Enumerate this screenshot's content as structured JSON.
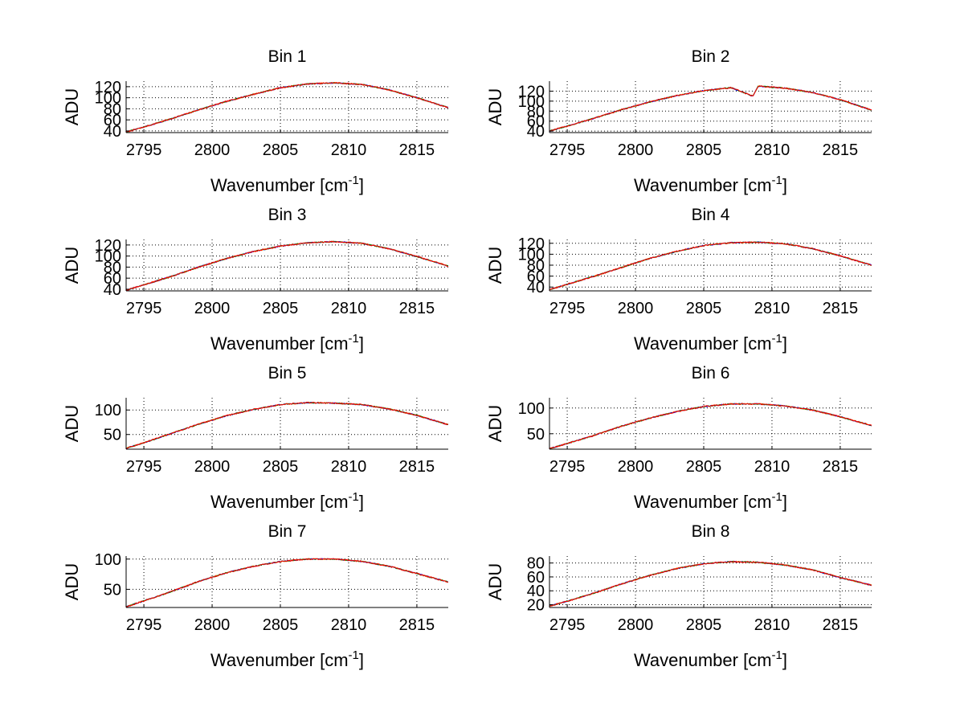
{
  "figure": {
    "background": "#ffffff",
    "trace_colors": [
      "#ff0000",
      "#008000",
      "#0000ff",
      "#ffa500"
    ]
  },
  "chart_data": [
    {
      "type": "line",
      "title": "Bin 1",
      "xlabel": "Wavenumber [cm",
      "xlabel_sup": "-1",
      "xlabel_end": "]",
      "ylabel": "ADU",
      "xlim": [
        2793.7,
        2817.3
      ],
      "ylim": [
        37,
        130
      ],
      "xticks": [
        2795,
        2800,
        2805,
        2810,
        2815
      ],
      "yticks": [
        40,
        60,
        80,
        100,
        120
      ],
      "grid": true,
      "x": [
        2793.7,
        2795,
        2797,
        2799,
        2801,
        2803,
        2805,
        2807,
        2809,
        2811,
        2813,
        2815,
        2817.3
      ],
      "values": [
        38,
        47,
        62,
        78,
        93,
        106,
        118,
        125,
        127,
        124,
        114,
        100,
        82
      ]
    },
    {
      "type": "line",
      "title": "Bin 2",
      "xlabel": "Wavenumber [cm",
      "xlabel_sup": "-1",
      "xlabel_end": "]",
      "ylabel": "ADU",
      "xlim": [
        2793.7,
        2817.3
      ],
      "ylim": [
        37,
        140
      ],
      "xticks": [
        2795,
        2800,
        2805,
        2810,
        2815
      ],
      "yticks": [
        40,
        60,
        80,
        100,
        120
      ],
      "grid": true,
      "x": [
        2793.7,
        2795,
        2797,
        2799,
        2801,
        2803,
        2805,
        2807,
        2808.6,
        2809,
        2811,
        2813,
        2815,
        2817.3
      ],
      "values": [
        40,
        50,
        66,
        83,
        98,
        111,
        121,
        127,
        110,
        130,
        126,
        117,
        103,
        82
      ]
    },
    {
      "type": "line",
      "title": "Bin 3",
      "xlabel": "Wavenumber [cm",
      "xlabel_sup": "-1",
      "xlabel_end": "]",
      "ylabel": "ADU",
      "xlim": [
        2793.7,
        2817.3
      ],
      "ylim": [
        37,
        130
      ],
      "xticks": [
        2795,
        2800,
        2805,
        2810,
        2815
      ],
      "yticks": [
        40,
        60,
        80,
        100,
        120
      ],
      "grid": true,
      "x": [
        2793.7,
        2795,
        2797,
        2799,
        2801,
        2803,
        2805,
        2807,
        2809,
        2811,
        2813,
        2815,
        2817.3
      ],
      "values": [
        38,
        48,
        63,
        80,
        95,
        108,
        118,
        124,
        126,
        123,
        113,
        99,
        82
      ]
    },
    {
      "type": "line",
      "title": "Bin 4",
      "xlabel": "Wavenumber [cm",
      "xlabel_sup": "-1",
      "xlabel_end": "]",
      "ylabel": "ADU",
      "xlim": [
        2793.7,
        2817.3
      ],
      "ylim": [
        33,
        127
      ],
      "xticks": [
        2795,
        2800,
        2805,
        2810,
        2815
      ],
      "yticks": [
        40,
        60,
        80,
        100,
        120
      ],
      "grid": true,
      "x": [
        2793.7,
        2795,
        2797,
        2799,
        2801,
        2803,
        2805,
        2807,
        2809,
        2811,
        2813,
        2815,
        2817.3
      ],
      "values": [
        35,
        45,
        60,
        76,
        92,
        105,
        116,
        121,
        122,
        119,
        110,
        97,
        80
      ]
    },
    {
      "type": "line",
      "title": "Bin 5",
      "xlabel": "Wavenumber [cm",
      "xlabel_sup": "-1",
      "xlabel_end": "]",
      "ylabel": "ADU",
      "xlim": [
        2793.7,
        2817.3
      ],
      "ylim": [
        20,
        125
      ],
      "xticks": [
        2795,
        2800,
        2805,
        2810,
        2815
      ],
      "yticks": [
        50,
        100
      ],
      "grid": true,
      "x": [
        2793.7,
        2795,
        2797,
        2799,
        2801,
        2803,
        2805,
        2807,
        2809,
        2811,
        2813,
        2815,
        2817.3
      ],
      "values": [
        22,
        33,
        52,
        71,
        88,
        101,
        111,
        115,
        114,
        111,
        102,
        89,
        70
      ]
    },
    {
      "type": "line",
      "title": "Bin 6",
      "xlabel": "Wavenumber [cm",
      "xlabel_sup": "-1",
      "xlabel_end": "]",
      "ylabel": "ADU",
      "xlim": [
        2793.7,
        2817.3
      ],
      "ylim": [
        20,
        120
      ],
      "xticks": [
        2795,
        2800,
        2805,
        2810,
        2815
      ],
      "yticks": [
        50,
        100
      ],
      "grid": true,
      "x": [
        2793.7,
        2795,
        2797,
        2799,
        2801,
        2803,
        2805,
        2807,
        2809,
        2811,
        2813,
        2815,
        2817.3
      ],
      "values": [
        21,
        31,
        47,
        65,
        80,
        93,
        103,
        108,
        108,
        104,
        96,
        83,
        66
      ]
    },
    {
      "type": "line",
      "title": "Bin 7",
      "xlabel": "Wavenumber [cm",
      "xlabel_sup": "-1",
      "xlabel_end": "]",
      "ylabel": "ADU",
      "xlim": [
        2793.7,
        2817.3
      ],
      "ylim": [
        20,
        105
      ],
      "xticks": [
        2795,
        2800,
        2805,
        2810,
        2815
      ],
      "yticks": [
        50,
        100
      ],
      "grid": true,
      "x": [
        2793.7,
        2795,
        2797,
        2799,
        2801,
        2803,
        2805,
        2807,
        2809,
        2811,
        2813,
        2815,
        2817.3
      ],
      "values": [
        21,
        31,
        46,
        63,
        77,
        88,
        96,
        100,
        100,
        96,
        88,
        76,
        62
      ]
    },
    {
      "type": "line",
      "title": "Bin 8",
      "xlabel": "Wavenumber [cm",
      "xlabel_sup": "-1",
      "xlabel_end": "]",
      "ylabel": "ADU",
      "xlim": [
        2793.7,
        2817.3
      ],
      "ylim": [
        16,
        90
      ],
      "xticks": [
        2795,
        2800,
        2805,
        2810,
        2815
      ],
      "yticks": [
        20,
        40,
        60,
        80
      ],
      "grid": true,
      "x": [
        2793.7,
        2795,
        2797,
        2799,
        2801,
        2803,
        2805,
        2807,
        2809,
        2811,
        2813,
        2815,
        2817.3
      ],
      "values": [
        18,
        25,
        37,
        50,
        62,
        72,
        79,
        82,
        81,
        77,
        70,
        59,
        48
      ]
    }
  ]
}
